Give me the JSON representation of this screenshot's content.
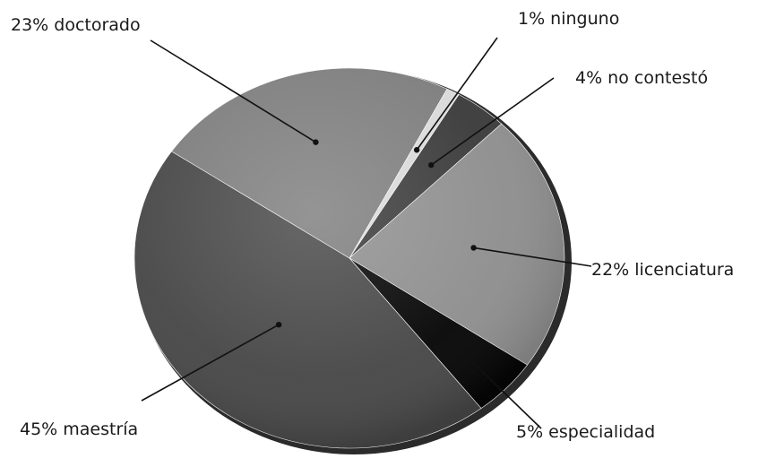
{
  "chart_data": {
    "type": "pie",
    "title": "",
    "slices": [
      {
        "label": "1% ninguno",
        "value": 1,
        "color": "#d9d9d9"
      },
      {
        "label": "4% no contestó",
        "value": 4,
        "color": "#3a3a3a"
      },
      {
        "label": "22% licenciatura",
        "value": 22,
        "color": "#8e8e8e"
      },
      {
        "label": "5% especialidad",
        "value": 5,
        "color": "#060606"
      },
      {
        "label": "45% maestría",
        "value": 45,
        "color": "#474747"
      },
      {
        "label": "23% doctorado",
        "value": 23,
        "color": "#7d7d7d"
      }
    ]
  }
}
